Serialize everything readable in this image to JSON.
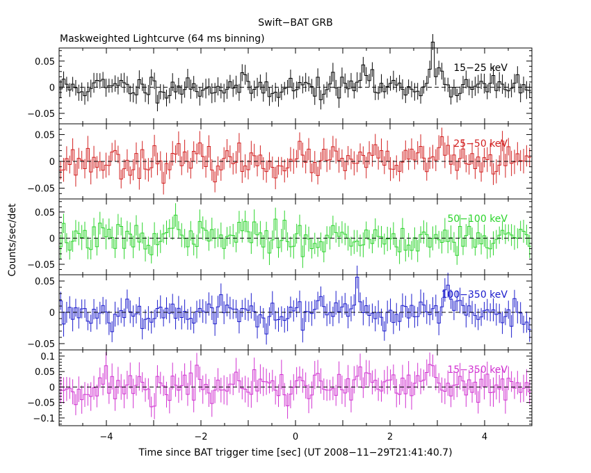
{
  "chart_data": {
    "type": "line",
    "title": "Swift−BAT GRB",
    "subtitle": "Maskweighted Lightcurve (64 ms binning)",
    "xlabel": "Time since BAT trigger time [sec] (UT 2008−11−29T21:41:40.7)",
    "ylabel": "Counts/sec/det",
    "xlim": [
      -5,
      5
    ],
    "x_ticks": [
      -4,
      -2,
      0,
      2,
      4
    ],
    "x_tick_labels": [
      "−4",
      "−2",
      "0",
      "2",
      "4"
    ],
    "bin_width_sec": 0.064,
    "panels": [
      {
        "name": "15−25 keV",
        "color": "#000000",
        "ylim": [
          -0.07,
          0.075
        ],
        "y_ticks": [
          -0.05,
          0,
          0.05
        ],
        "y_tick_labels": [
          "−0.05",
          "0",
          "0.05"
        ],
        "seed": 11,
        "noise": 0.012,
        "err": 0.016,
        "peaks": [
          [
            1.45,
            0.045
          ],
          [
            2.9,
            0.065
          ],
          [
            3.05,
            0.03
          ]
        ]
      },
      {
        "name": "25−50 keV",
        "color": "#d21e1e",
        "ylim": [
          -0.07,
          0.07
        ],
        "y_ticks": [
          -0.05,
          0,
          0.05
        ],
        "y_tick_labels": [
          "−0.05",
          "0",
          "0.05"
        ],
        "seed": 23,
        "noise": 0.015,
        "err": 0.02,
        "peaks": [
          [
            3.1,
            0.035
          ]
        ]
      },
      {
        "name": "50−100 keV",
        "color": "#2ad42a",
        "ylim": [
          -0.07,
          0.075
        ],
        "y_ticks": [
          -0.05,
          0,
          0.05
        ],
        "y_tick_labels": [
          "−0.05",
          "0",
          "0.05"
        ],
        "seed": 37,
        "noise": 0.015,
        "err": 0.02,
        "peaks": [
          [
            -2.45,
            0.045
          ],
          [
            -1.1,
            0.03
          ]
        ]
      },
      {
        "name": "100−350 keV",
        "color": "#1a1acc",
        "ylim": [
          -0.06,
          0.06
        ],
        "y_ticks": [
          -0.05,
          0,
          0.05
        ],
        "y_tick_labels": [
          "−0.05",
          "0",
          "0.05"
        ],
        "seed": 53,
        "noise": 0.013,
        "err": 0.017,
        "peaks": [
          [
            1.3,
            0.03
          ],
          [
            3.2,
            0.035
          ]
        ]
      },
      {
        "name": "15−350 keV",
        "color": "#d030d0",
        "ylim": [
          -0.125,
          0.12
        ],
        "y_ticks": [
          -0.1,
          -0.05,
          0,
          0.05,
          0.1
        ],
        "y_tick_labels": [
          "−0.1",
          "−0.05",
          "0",
          "0.05",
          "0.1"
        ],
        "seed": 71,
        "noise": 0.03,
        "err": 0.04,
        "peaks": [
          [
            1.4,
            0.05
          ],
          [
            2.9,
            0.05
          ]
        ]
      }
    ]
  }
}
